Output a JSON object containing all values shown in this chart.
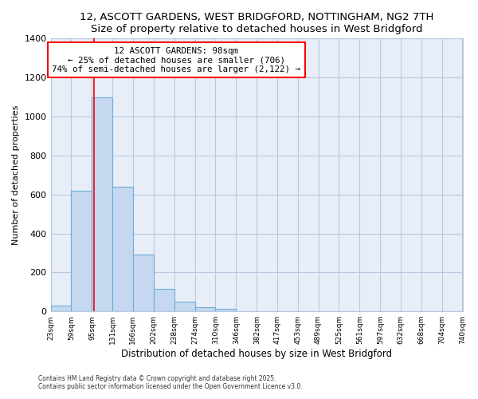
{
  "title": "12, ASCOTT GARDENS, WEST BRIDGFORD, NOTTINGHAM, NG2 7TH",
  "subtitle": "Size of property relative to detached houses in West Bridgford",
  "xlabel": "Distribution of detached houses by size in West Bridgford",
  "ylabel": "Number of detached properties",
  "bin_edges": [
    23,
    59,
    95,
    131,
    166,
    202,
    238,
    274,
    310,
    346,
    382,
    417,
    453,
    489,
    525,
    561,
    597,
    632,
    668,
    704,
    740
  ],
  "bar_heights": [
    30,
    620,
    1100,
    640,
    290,
    115,
    50,
    20,
    15,
    0,
    0,
    0,
    0,
    0,
    0,
    0,
    0,
    0,
    0,
    0
  ],
  "bar_color": "#c5d8f0",
  "bar_edge_color": "#6baed6",
  "bar_edge_width": 0.8,
  "marker_x": 98,
  "marker_color": "red",
  "annotation_title": "12 ASCOTT GARDENS: 98sqm",
  "annotation_line1": "← 25% of detached houses are smaller (706)",
  "annotation_line2": "74% of semi-detached houses are larger (2,122) →",
  "annotation_box_color": "white",
  "annotation_box_edge_color": "red",
  "xlim": [
    23,
    740
  ],
  "ylim": [
    0,
    1400
  ],
  "yticks": [
    0,
    200,
    400,
    600,
    800,
    1000,
    1200,
    1400
  ],
  "tick_labels": [
    "23sqm",
    "59sqm",
    "95sqm",
    "131sqm",
    "166sqm",
    "202sqm",
    "238sqm",
    "274sqm",
    "310sqm",
    "346sqm",
    "382sqm",
    "417sqm",
    "453sqm",
    "489sqm",
    "525sqm",
    "561sqm",
    "597sqm",
    "632sqm",
    "668sqm",
    "704sqm",
    "740sqm"
  ],
  "bg_color": "#ffffff",
  "plot_bg_color": "#e8eef8",
  "grid_color": "#b8c8e0",
  "footer1": "Contains HM Land Registry data © Crown copyright and database right 2025.",
  "footer2": "Contains public sector information licensed under the Open Government Licence v3.0."
}
